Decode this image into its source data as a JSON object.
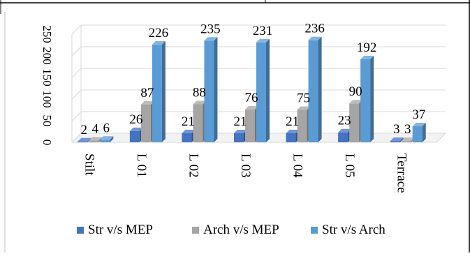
{
  "chart_data": {
    "type": "bar",
    "three_d": true,
    "categories": [
      "Stilt",
      "L 01",
      "L 02",
      "L 03",
      "L 04",
      "L 05",
      "Terrace"
    ],
    "series": [
      {
        "name": "Str v/s MEP",
        "color": "#4472c4",
        "values": [
          2,
          26,
          21,
          21,
          21,
          23,
          3
        ]
      },
      {
        "name": "Arch v/s MEP",
        "color": "#a5a5a5",
        "values": [
          4,
          87,
          88,
          76,
          75,
          90,
          3
        ]
      },
      {
        "name": "Str v/s Arch",
        "color": "#5b9bd5",
        "values": [
          6,
          226,
          235,
          231,
          236,
          192,
          37
        ]
      }
    ],
    "y_ticks": [
      "0",
      "50",
      "100",
      "150",
      "200",
      "250"
    ],
    "ylim": [
      0,
      250
    ],
    "grid": true,
    "data_labels": true,
    "legend": "bottom"
  }
}
